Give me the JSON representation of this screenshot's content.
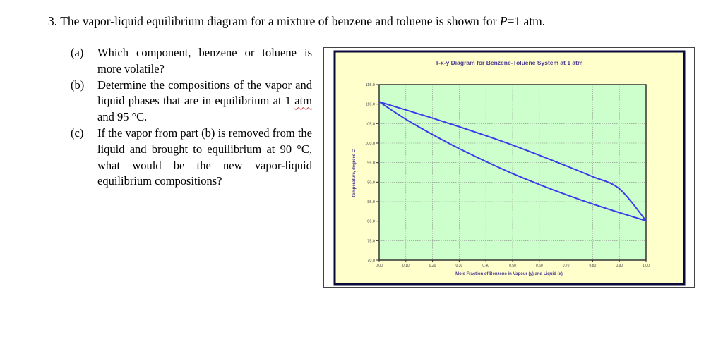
{
  "problem": {
    "number": "3.",
    "text_pre": "The vapor-liquid equilibrium diagram for a mixture of benzene and toluene is shown for ",
    "var": "P",
    "text_post": "=1 atm."
  },
  "questions": [
    {
      "label": "(a)",
      "text": "Which component, benzene or toluene is more volatile?"
    },
    {
      "label": "(b)",
      "text_pre": "Determine the compositions of the vapor and liquid phases that are in equilibrium at 1 ",
      "text_underlined": "atm",
      "text_post": " and 95 °C."
    },
    {
      "label": "(c)",
      "text": "If the vapor from part (b) is removed from the liquid and brought to equilibrium at 90 °C, what would be the new vapor-liquid equilibrium compositions?"
    }
  ],
  "chart_data": {
    "type": "line",
    "title": "T-x-y Diagram for Benzene-Toluene System at 1 atm",
    "xlabel": "Mole Fraction of Benzene in Vapour (y) and Liquid (x)",
    "ylabel": "Temperature, degrees C",
    "xlim": [
      0,
      1
    ],
    "ylim": [
      70,
      115
    ],
    "x_ticks": [
      "0.00",
      "0.10",
      "0.20",
      "0.30",
      "0.40",
      "0.50",
      "0.60",
      "0.70",
      "0.80",
      "0.90",
      "1.00"
    ],
    "y_ticks": [
      "70.0",
      "75.0",
      "80.0",
      "85.0",
      "90.0",
      "95.0",
      "100.0",
      "105.0",
      "110.0",
      "115.0"
    ],
    "grid": true,
    "series": [
      {
        "curve": "dew",
        "x": [
          0.0,
          0.1,
          0.2,
          0.3,
          0.4,
          0.5,
          0.6,
          0.7,
          0.8,
          0.9,
          1.0
        ],
        "y": [
          110.6,
          108.5,
          106.4,
          104.2,
          101.9,
          99.5,
          96.9,
          94.2,
          91.4,
          88.3,
          80.1
        ]
      },
      {
        "curve": "bubble",
        "x": [
          0.0,
          0.1,
          0.2,
          0.3,
          0.4,
          0.5,
          0.6,
          0.7,
          0.8,
          0.9,
          1.0
        ],
        "y": [
          110.6,
          106.1,
          102.2,
          98.6,
          95.3,
          92.2,
          89.4,
          86.8,
          84.4,
          82.2,
          80.1
        ]
      }
    ],
    "colors": {
      "plot_bg": "#ccffcc",
      "frame_bg": "#ffffcc",
      "line": "#3b3bea",
      "outer_border": "#0a0a3a",
      "grid": "#8a8a8a"
    }
  }
}
